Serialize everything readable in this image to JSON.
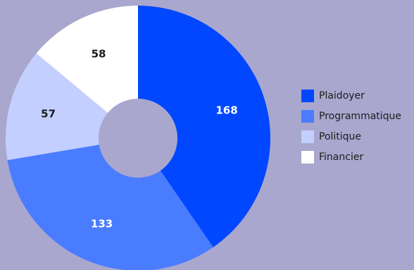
{
  "chart_data": {
    "type": "pie",
    "donut": true,
    "title": "",
    "legend_position": "right",
    "categories": [
      "Plaidoyer",
      "Programmatique",
      "Politique",
      "Financier"
    ],
    "values": [
      168,
      133,
      57,
      58
    ],
    "colors": [
      "#0047ff",
      "#4a7cff",
      "#c3cfff",
      "#ffffff"
    ],
    "label_colors": [
      "#ffffff",
      "#ffffff",
      "#1c1c1c",
      "#1c1c1c"
    ]
  }
}
